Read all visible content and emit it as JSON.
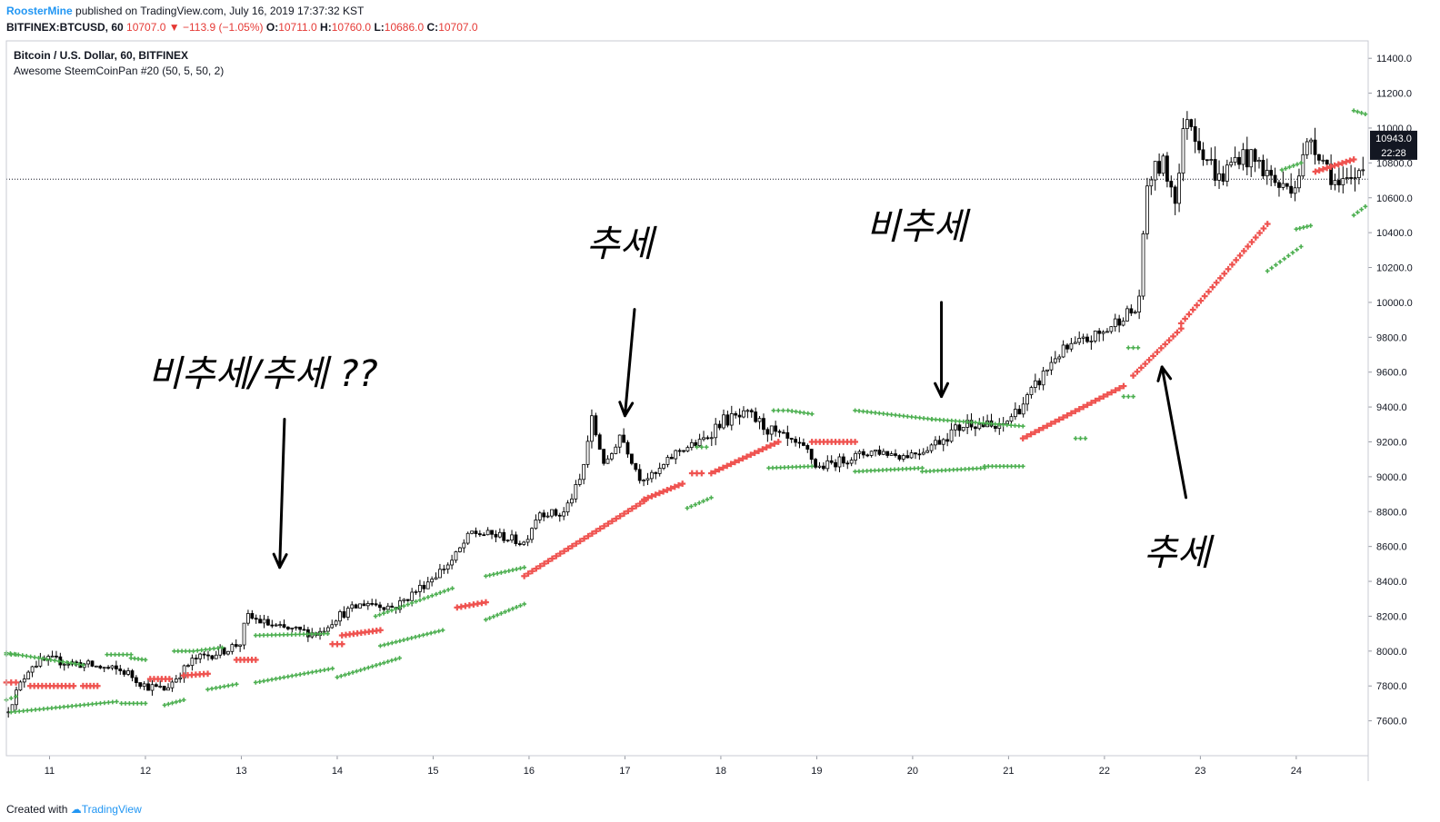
{
  "header": {
    "author": "RoosterMine",
    "published": " published on TradingView.com, July 16, 2019 17:37:32 KST",
    "symbol": "BITFINEX:BTCUSD, 60",
    "last": "10707.0",
    "change": "−113.9 (−1.05%)",
    "o_label": "O:",
    "o_val": "10711.0",
    "h_label": "H:",
    "h_val": "10760.0",
    "l_label": "L:",
    "l_val": "10686.0",
    "c_label": "C:",
    "c_val": "10707.0"
  },
  "legend": {
    "title": "Bitcoin / U.S. Dollar, 60, BITFINEX",
    "indicator": "Awesome SteemCoinPan #20 (50, 5, 50, 2)"
  },
  "footer": {
    "created": "Created with ",
    "brand": "TradingView"
  },
  "colors": {
    "up_sar": "#4caf50",
    "down_sar": "#ef5350",
    "candle": "#000000",
    "grid": "#e0e3eb"
  },
  "chart_data": {
    "type": "line",
    "ylim": [
      7400,
      11500
    ],
    "xlim": [
      10.55,
      24.75
    ],
    "y_ticks": [
      "7600.0",
      "7800.0",
      "8000.0",
      "8200.0",
      "8400.0",
      "8600.0",
      "8800.0",
      "9000.0",
      "9200.0",
      "9400.0",
      "9600.0",
      "9800.0",
      "10000.0",
      "10200.0",
      "10400.0",
      "10600.0",
      "10800.0",
      "11000.0",
      "11200.0",
      "11400.0"
    ],
    "x_ticks": [
      "11",
      "12",
      "13",
      "14",
      "15",
      "16",
      "17",
      "18",
      "19",
      "20",
      "21",
      "22",
      "23",
      "24"
    ],
    "current_price": "10943.0",
    "countdown": "22:28",
    "dotted_level": 10707,
    "price_path": [
      [
        10.55,
        7650
      ],
      [
        10.8,
        7920
      ],
      [
        11.0,
        7950
      ],
      [
        11.4,
        7920
      ],
      [
        11.8,
        7880
      ],
      [
        12.0,
        7800
      ],
      [
        12.2,
        7780
      ],
      [
        12.5,
        7950
      ],
      [
        12.8,
        8000
      ],
      [
        13.0,
        8050
      ],
      [
        13.05,
        8200
      ],
      [
        13.4,
        8130
      ],
      [
        13.8,
        8100
      ],
      [
        14.0,
        8200
      ],
      [
        14.3,
        8280
      ],
      [
        14.6,
        8250
      ],
      [
        14.9,
        8380
      ],
      [
        15.2,
        8520
      ],
      [
        15.4,
        8680
      ],
      [
        15.7,
        8660
      ],
      [
        15.95,
        8620
      ],
      [
        16.1,
        8800
      ],
      [
        16.35,
        8780
      ],
      [
        16.55,
        9000
      ],
      [
        16.65,
        9330
      ],
      [
        16.8,
        9050
      ],
      [
        16.95,
        9250
      ],
      [
        17.15,
        9000
      ],
      [
        17.3,
        9000
      ],
      [
        17.55,
        9150
      ],
      [
        17.8,
        9200
      ],
      [
        18.0,
        9320
      ],
      [
        18.3,
        9350
      ],
      [
        18.6,
        9230
      ],
      [
        18.9,
        9150
      ],
      [
        19.0,
        9050
      ],
      [
        19.3,
        9100
      ],
      [
        19.6,
        9150
      ],
      [
        19.9,
        9120
      ],
      [
        20.1,
        9150
      ],
      [
        20.3,
        9220
      ],
      [
        20.6,
        9320
      ],
      [
        20.9,
        9270
      ],
      [
        21.2,
        9450
      ],
      [
        21.5,
        9700
      ],
      [
        21.8,
        9780
      ],
      [
        22.0,
        9830
      ],
      [
        22.2,
        9930
      ],
      [
        22.35,
        9950
      ],
      [
        22.45,
        10700
      ],
      [
        22.6,
        10800
      ],
      [
        22.75,
        10600
      ],
      [
        22.85,
        11100
      ],
      [
        23.0,
        10900
      ],
      [
        23.2,
        10700
      ],
      [
        23.4,
        10850
      ],
      [
        23.6,
        10800
      ],
      [
        23.85,
        10650
      ],
      [
        24.0,
        10700
      ],
      [
        24.15,
        10950
      ],
      [
        24.3,
        10800
      ],
      [
        24.45,
        10650
      ],
      [
        24.6,
        10700
      ],
      [
        24.72,
        10850
      ]
    ],
    "sar_segments": [
      {
        "trend": "up",
        "from": 10.55,
        "to": 10.65,
        "start": 7720,
        "end": 7740
      },
      {
        "trend": "down",
        "from": 10.55,
        "to": 10.65,
        "start": 7820,
        "end": 7820
      },
      {
        "trend": "up",
        "from": 10.55,
        "to": 11.35,
        "start": 7990,
        "end": 7920
      },
      {
        "trend": "down",
        "from": 10.8,
        "to": 11.25,
        "start": 7800,
        "end": 7800
      },
      {
        "trend": "down",
        "from": 11.35,
        "to": 11.5,
        "start": 7800,
        "end": 7800
      },
      {
        "trend": "up",
        "from": 10.55,
        "to": 10.65,
        "start": 7980,
        "end": 7980
      },
      {
        "trend": "up",
        "from": 11.6,
        "to": 11.85,
        "start": 7980,
        "end": 7980
      },
      {
        "trend": "up",
        "from": 11.85,
        "to": 12.0,
        "start": 7960,
        "end": 7950
      },
      {
        "trend": "up",
        "from": 10.6,
        "to": 11.7,
        "start": 7650,
        "end": 7710
      },
      {
        "trend": "up",
        "from": 11.75,
        "to": 12.0,
        "start": 7700,
        "end": 7700
      },
      {
        "trend": "down",
        "from": 12.05,
        "to": 12.25,
        "start": 7840,
        "end": 7840
      },
      {
        "trend": "up",
        "from": 12.2,
        "to": 12.4,
        "start": 7690,
        "end": 7720
      },
      {
        "trend": "up",
        "from": 12.3,
        "to": 12.5,
        "start": 8000,
        "end": 8000
      },
      {
        "trend": "down",
        "from": 12.4,
        "to": 12.65,
        "start": 7860,
        "end": 7870
      },
      {
        "trend": "up",
        "from": 12.65,
        "to": 12.95,
        "start": 7780,
        "end": 7810
      },
      {
        "trend": "up",
        "from": 12.5,
        "to": 12.8,
        "start": 8000,
        "end": 8020
      },
      {
        "trend": "down",
        "from": 12.95,
        "to": 13.15,
        "start": 7950,
        "end": 7950
      },
      {
        "trend": "up",
        "from": 13.15,
        "to": 13.95,
        "start": 7820,
        "end": 7900
      },
      {
        "trend": "up",
        "from": 13.15,
        "to": 13.9,
        "start": 8090,
        "end": 8100
      },
      {
        "trend": "down",
        "from": 13.95,
        "to": 14.05,
        "start": 8040,
        "end": 8040
      },
      {
        "trend": "down",
        "from": 14.05,
        "to": 14.45,
        "start": 8090,
        "end": 8120
      },
      {
        "trend": "up",
        "from": 14.0,
        "to": 14.65,
        "start": 7850,
        "end": 7960
      },
      {
        "trend": "up",
        "from": 14.4,
        "to": 15.2,
        "start": 8200,
        "end": 8360
      },
      {
        "trend": "up",
        "from": 14.45,
        "to": 15.1,
        "start": 8030,
        "end": 8120
      },
      {
        "trend": "down",
        "from": 15.25,
        "to": 15.55,
        "start": 8250,
        "end": 8280
      },
      {
        "trend": "up",
        "from": 15.55,
        "to": 15.95,
        "start": 8180,
        "end": 8270
      },
      {
        "trend": "up",
        "from": 15.55,
        "to": 15.95,
        "start": 8430,
        "end": 8480
      },
      {
        "trend": "down",
        "from": 15.95,
        "to": 17.2,
        "start": 8430,
        "end": 8860
      },
      {
        "trend": "down",
        "from": 17.2,
        "to": 17.6,
        "start": 8870,
        "end": 8960
      },
      {
        "trend": "up",
        "from": 17.65,
        "to": 17.9,
        "start": 8820,
        "end": 8880
      },
      {
        "trend": "down",
        "from": 17.7,
        "to": 17.8,
        "start": 9020,
        "end": 9020
      },
      {
        "trend": "down",
        "from": 17.9,
        "to": 18.6,
        "start": 9020,
        "end": 9200
      },
      {
        "trend": "up",
        "from": 17.75,
        "to": 17.85,
        "start": 9170,
        "end": 9170
      },
      {
        "trend": "up",
        "from": 18.55,
        "to": 18.65,
        "start": 9380,
        "end": 9380
      },
      {
        "trend": "up",
        "from": 18.7,
        "to": 18.95,
        "start": 9380,
        "end": 9360
      },
      {
        "trend": "up",
        "from": 18.5,
        "to": 18.95,
        "start": 9050,
        "end": 9060
      },
      {
        "trend": "down",
        "from": 18.95,
        "to": 19.4,
        "start": 9200,
        "end": 9200
      },
      {
        "trend": "up",
        "from": 19.4,
        "to": 20.2,
        "start": 9380,
        "end": 9330
      },
      {
        "trend": "up",
        "from": 19.4,
        "to": 20.1,
        "start": 9030,
        "end": 9050
      },
      {
        "trend": "up",
        "from": 20.1,
        "to": 20.75,
        "start": 9030,
        "end": 9050
      },
      {
        "trend": "up",
        "from": 20.75,
        "to": 21.15,
        "start": 9060,
        "end": 9060
      },
      {
        "trend": "up",
        "from": 20.2,
        "to": 21.15,
        "start": 9330,
        "end": 9290
      },
      {
        "trend": "down",
        "from": 21.15,
        "to": 22.2,
        "start": 9220,
        "end": 9520
      },
      {
        "trend": "up",
        "from": 21.7,
        "to": 21.8,
        "start": 9220,
        "end": 9220
      },
      {
        "trend": "up",
        "from": 22.2,
        "to": 22.3,
        "start": 9460,
        "end": 9460
      },
      {
        "trend": "up",
        "from": 22.25,
        "to": 22.35,
        "start": 9740,
        "end": 9740
      },
      {
        "trend": "down",
        "from": 22.3,
        "to": 22.8,
        "start": 9580,
        "end": 9850
      },
      {
        "trend": "down",
        "from": 22.8,
        "to": 23.7,
        "start": 9880,
        "end": 10450
      },
      {
        "trend": "up",
        "from": 23.7,
        "to": 24.05,
        "start": 10180,
        "end": 10320
      },
      {
        "trend": "up",
        "from": 24.0,
        "to": 24.15,
        "start": 10420,
        "end": 10440
      },
      {
        "trend": "up",
        "from": 23.85,
        "to": 24.05,
        "start": 10760,
        "end": 10800
      },
      {
        "trend": "down",
        "from": 24.2,
        "to": 24.6,
        "start": 10750,
        "end": 10820
      },
      {
        "trend": "up",
        "from": 24.6,
        "to": 24.72,
        "start": 10500,
        "end": 10550
      },
      {
        "trend": "up",
        "from": 24.6,
        "to": 24.72,
        "start": 11100,
        "end": 11080
      }
    ],
    "annotations": [
      {
        "text": "비추세/추세 ??",
        "arrow": {
          "from": [
            13.45,
            9330
          ],
          "to": [
            13.4,
            8480
          ]
        }
      },
      {
        "text": "추세",
        "arrow": {
          "from": [
            17.1,
            9960
          ],
          "to": [
            17.0,
            9350
          ]
        }
      },
      {
        "text": "비추세",
        "arrow": {
          "from": [
            20.3,
            10000
          ],
          "to": [
            20.3,
            9460
          ]
        }
      },
      {
        "text": "추세",
        "arrow": {
          "from": [
            22.85,
            8880
          ],
          "to": [
            22.6,
            9630
          ]
        }
      }
    ]
  }
}
